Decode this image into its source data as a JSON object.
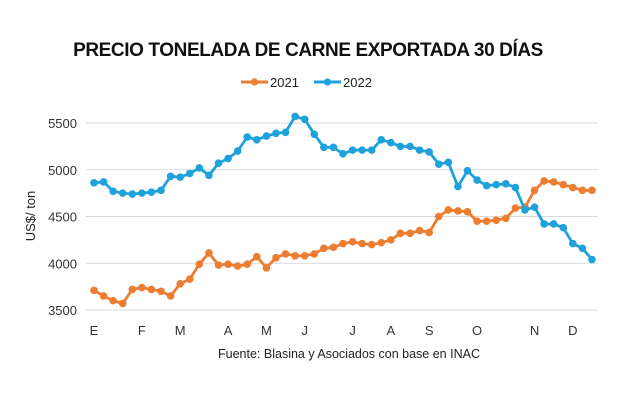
{
  "chart_data": {
    "type": "line",
    "title": "PRECIO TONELADA DE CARNE EXPORTADA 30 DÍAS",
    "xlabel": "",
    "ylabel": "US$/ ton",
    "source": "Fuente: Blasina y Asociados con base en INAC",
    "ylim": [
      3500,
      5500
    ],
    "yticks": [
      3500,
      4000,
      4500,
      5000,
      5500
    ],
    "grid": true,
    "legend_position": "top",
    "month_labels": [
      "E",
      "F",
      "M",
      "A",
      "M",
      "J",
      "J",
      "A",
      "S",
      "O",
      "N",
      "D"
    ],
    "month_label_index": [
      0,
      5,
      9,
      14,
      18,
      22,
      27,
      31,
      35,
      40,
      46,
      50
    ],
    "x_count": 53,
    "series": [
      {
        "name": "2021",
        "color": "#ED7D31",
        "values": [
          3710,
          3650,
          3600,
          3570,
          3720,
          3740,
          3720,
          3700,
          3650,
          3780,
          3830,
          3990,
          4110,
          3980,
          3990,
          3970,
          3990,
          4070,
          3950,
          4060,
          4100,
          4080,
          4080,
          4100,
          4160,
          4170,
          4210,
          4230,
          4210,
          4200,
          4220,
          4250,
          4320,
          4320,
          4350,
          4330,
          4500,
          4570,
          4560,
          4550,
          4450,
          4450,
          4460,
          4480,
          4590,
          4600,
          4780,
          4880,
          4870,
          4840,
          4810,
          4780,
          4780
        ]
      },
      {
        "name": "2022",
        "color": "#1EA2DC",
        "values": [
          4860,
          4870,
          4770,
          4750,
          4740,
          4750,
          4760,
          4780,
          4930,
          4920,
          4960,
          5020,
          4940,
          5070,
          5120,
          5200,
          5350,
          5320,
          5360,
          5390,
          5400,
          5570,
          5540,
          5380,
          5240,
          5240,
          5170,
          5210,
          5210,
          5210,
          5320,
          5290,
          5250,
          5250,
          5210,
          5190,
          5060,
          5080,
          4820,
          4990,
          4890,
          4830,
          4840,
          4850,
          4810,
          4570,
          4600,
          4420,
          4420,
          4380,
          4210,
          4160,
          4040
        ]
      }
    ]
  }
}
